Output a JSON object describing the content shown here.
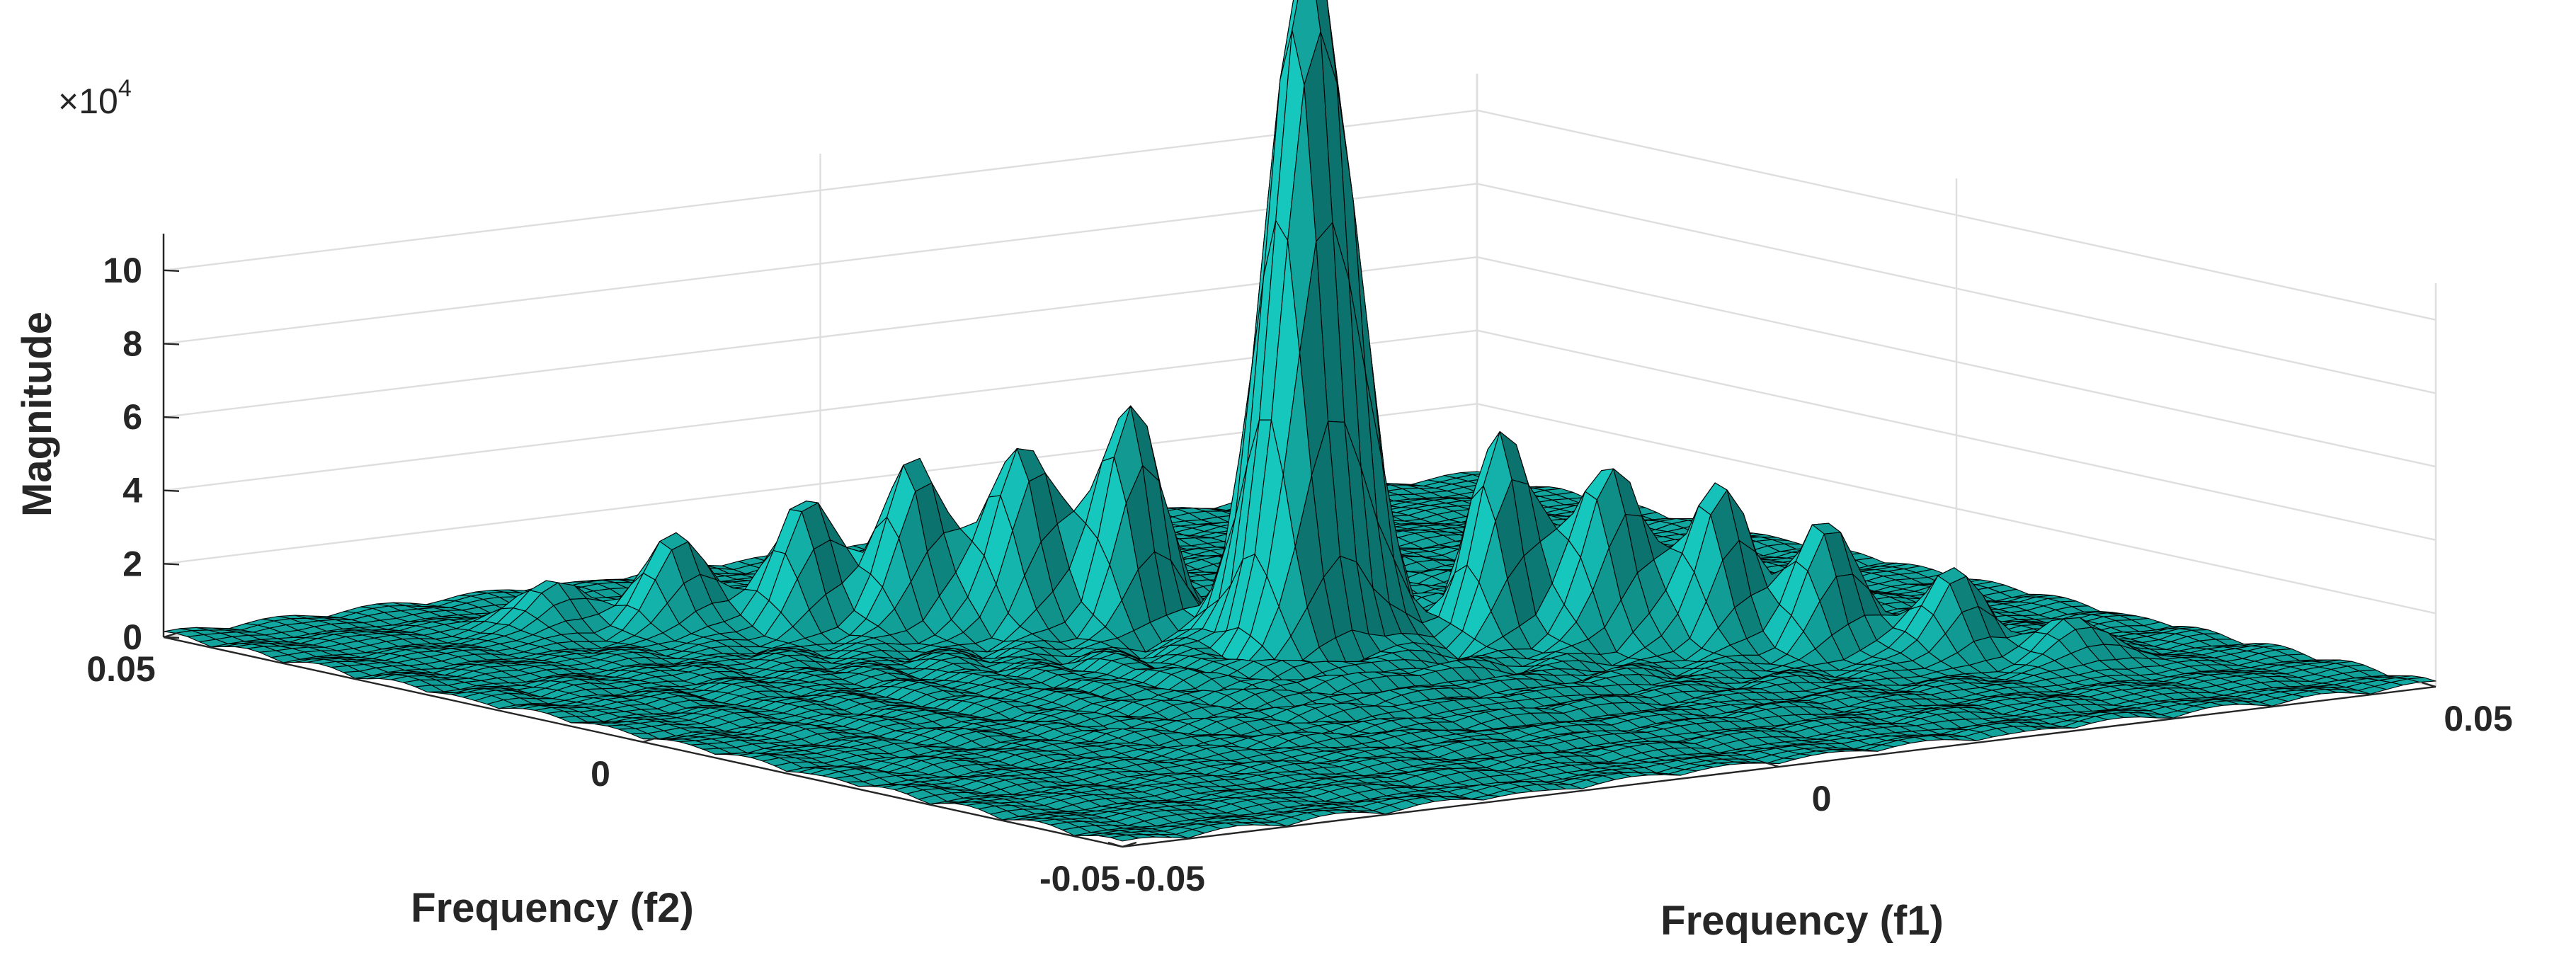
{
  "chart_data": {
    "type": "surface",
    "surface_color": "#14b8b0",
    "edge_color": "#000000",
    "grid": true,
    "xlabel": "Frequency (f1)",
    "ylabel": "Frequency (f2)",
    "zlabel": "Magnitude",
    "z_exponent_label": "×10",
    "z_exponent_power": "4",
    "xlim": [
      -0.05,
      0.05
    ],
    "ylim": [
      -0.05,
      0.05
    ],
    "zlim": [
      0,
      110000
    ],
    "x_ticks": [
      -0.05,
      0,
      0.05
    ],
    "x_tick_labels": [
      "-0.05",
      "0",
      "0.05"
    ],
    "y_ticks": [
      -0.05,
      0,
      0.05
    ],
    "y_tick_labels": [
      "-0.05",
      "0",
      "0.05"
    ],
    "z_ticks": [
      0,
      20000,
      40000,
      60000,
      80000,
      100000
    ],
    "z_tick_labels": [
      "0",
      "2",
      "4",
      "6",
      "8",
      "10"
    ],
    "peaks": [
      {
        "f1": 0.0023,
        "f2": 0.0047,
        "magnitude": 103000
      },
      {
        "f1": 0.0012,
        "f2": 0.0012,
        "magnitude": 104000
      },
      {
        "f1": 0.0047,
        "f2": 0.0023,
        "magnitude": 102000
      },
      {
        "f1": -0.0035,
        "f2": 0.013,
        "magnitude": 62000
      },
      {
        "f1": 0.013,
        "f2": -0.0035,
        "magnitude": 57000
      },
      {
        "f1": -0.0082,
        "f2": 0.0176,
        "magnitude": 52000
      },
      {
        "f1": 0.0176,
        "f2": -0.0082,
        "magnitude": 50000
      },
      {
        "f1": -0.013,
        "f2": 0.0224,
        "magnitude": 47000
      },
      {
        "f1": 0.0224,
        "f2": -0.013,
        "magnitude": 45000
      },
      {
        "f1": -0.018,
        "f2": 0.027,
        "magnitude": 35000
      },
      {
        "f1": 0.027,
        "f2": -0.018,
        "magnitude": 35000
      },
      {
        "f1": -0.024,
        "f2": 0.032,
        "magnitude": 26000
      },
      {
        "f1": 0.032,
        "f2": -0.024,
        "magnitude": 24000
      },
      {
        "f1": -0.03,
        "f2": 0.037,
        "magnitude": 14000
      },
      {
        "f1": 0.037,
        "f2": -0.03,
        "magnitude": 13000
      }
    ]
  }
}
